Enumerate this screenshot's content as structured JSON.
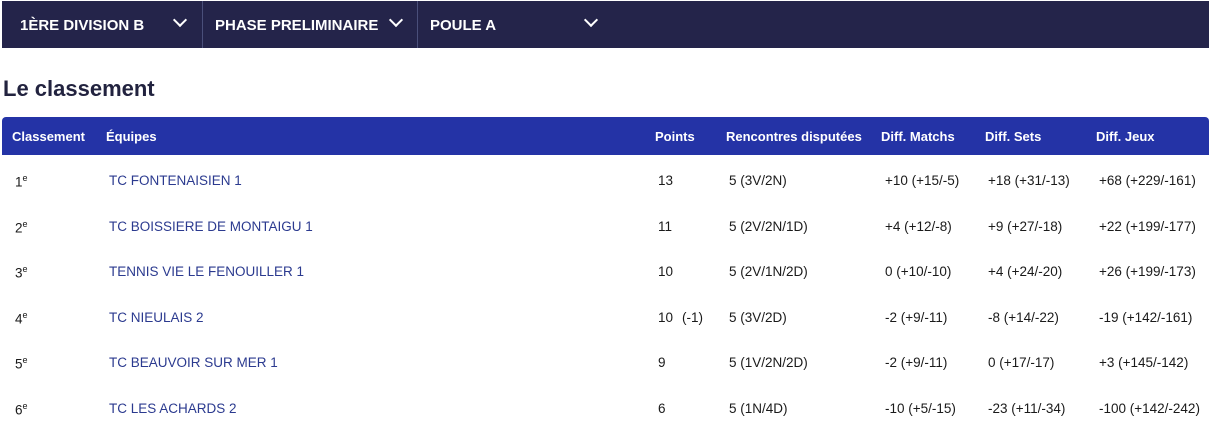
{
  "nav": {
    "division": "1ÈRE DIVISION B",
    "phase": "PHASE PRELIMINAIRE",
    "poule": "POULE A"
  },
  "title": "Le classement",
  "columns": [
    "Classement",
    "Équipes",
    "Points",
    "Rencontres disputées",
    "Diff. Matchs",
    "Diff. Sets",
    "Diff. Jeux"
  ],
  "rows": [
    {
      "rank": "1",
      "sup": "e",
      "team": "TC FONTENAISIEN 1",
      "points": "13",
      "penalty": "",
      "played": "5 (3V/2N)",
      "matchs": "+10 (+15/-5)",
      "sets": "+18 (+31/-13)",
      "jeux": "+68 (+229/-161)"
    },
    {
      "rank": "2",
      "sup": "e",
      "team": "TC BOISSIERE DE MONTAIGU 1",
      "points": "11",
      "penalty": "",
      "played": "5 (2V/2N/1D)",
      "matchs": "+4 (+12/-8)",
      "sets": "+9 (+27/-18)",
      "jeux": "+22 (+199/-177)"
    },
    {
      "rank": "3",
      "sup": "e",
      "team": "TENNIS VIE LE FENOUILLER 1",
      "points": "10",
      "penalty": "",
      "played": "5 (2V/1N/2D)",
      "matchs": "0 (+10/-10)",
      "sets": "+4 (+24/-20)",
      "jeux": "+26 (+199/-173)"
    },
    {
      "rank": "4",
      "sup": "e",
      "team": "TC NIEULAIS 2",
      "points": "10",
      "penalty": "(-1)",
      "played": "5 (3V/2D)",
      "matchs": "-2 (+9/-11)",
      "sets": "-8 (+14/-22)",
      "jeux": "-19 (+142/-161)"
    },
    {
      "rank": "5",
      "sup": "e",
      "team": "TC BEAUVOIR SUR MER 1",
      "points": "9",
      "penalty": "",
      "played": "5 (1V/2N/2D)",
      "matchs": "-2 (+9/-11)",
      "sets": "0 (+17/-17)",
      "jeux": "+3 (+145/-142)"
    },
    {
      "rank": "6",
      "sup": "e",
      "team": "TC LES ACHARDS 2",
      "points": "6",
      "penalty": "",
      "played": "5 (1N/4D)",
      "matchs": "-10 (+5/-15)",
      "sets": "-23 (+11/-34)",
      "jeux": "-100 (+142/-242)"
    }
  ]
}
